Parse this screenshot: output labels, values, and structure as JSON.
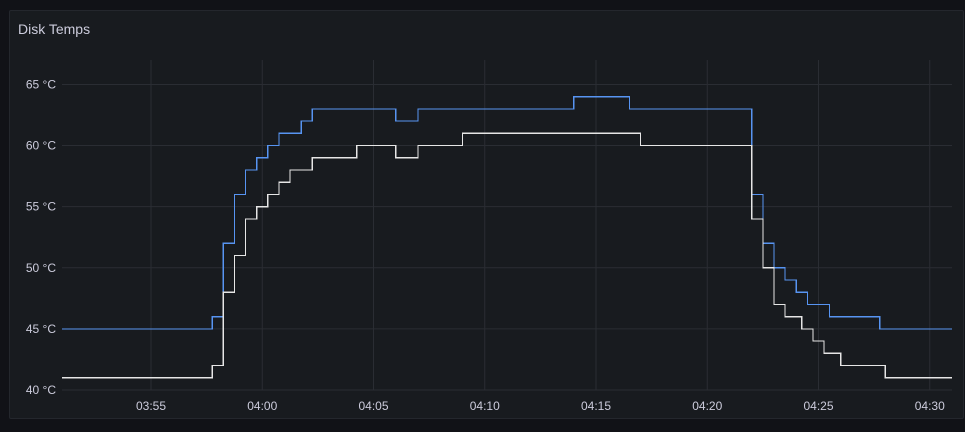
{
  "panel": {
    "title": "Disk Temps"
  },
  "colors": {
    "background": "#111217",
    "panel": "#181b1f",
    "grid": "#2a2d33",
    "text": "#ccccdc",
    "series_blue": "#5794f2",
    "series_white": "#e6e6e6"
  },
  "chart_data": {
    "type": "line",
    "line_style": "step-after",
    "title": "Disk Temps",
    "xlabel": "",
    "ylabel": "",
    "x_unit": "time (HH:MM)",
    "y_unit": "°C",
    "xlim": [
      "03:51:00",
      "04:31:00"
    ],
    "ylim": [
      40,
      67
    ],
    "x_ticks": [
      "03:55",
      "04:00",
      "04:05",
      "04:10",
      "04:15",
      "04:20",
      "04:25",
      "04:30"
    ],
    "y_ticks": [
      "40 °C",
      "45 °C",
      "50 °C",
      "55 °C",
      "60 °C",
      "65 °C"
    ],
    "grid": true,
    "legend": "none",
    "series": [
      {
        "color": "#5794f2",
        "points": [
          [
            "03:51:00",
            45
          ],
          [
            "03:57:45",
            46
          ],
          [
            "03:58:15",
            52
          ],
          [
            "03:58:45",
            56
          ],
          [
            "03:59:15",
            58
          ],
          [
            "03:59:45",
            59
          ],
          [
            "04:00:15",
            60
          ],
          [
            "04:00:45",
            61
          ],
          [
            "04:01:45",
            62
          ],
          [
            "04:02:15",
            63
          ],
          [
            "04:06:00",
            62
          ],
          [
            "04:07:00",
            63
          ],
          [
            "04:14:00",
            64
          ],
          [
            "04:16:30",
            63
          ],
          [
            "04:22:00",
            56
          ],
          [
            "04:22:30",
            52
          ],
          [
            "04:23:00",
            50
          ],
          [
            "04:23:30",
            49
          ],
          [
            "04:24:00",
            48
          ],
          [
            "04:24:30",
            47
          ],
          [
            "04:25:30",
            46
          ],
          [
            "04:27:45",
            45
          ],
          [
            "04:31:00",
            45
          ]
        ]
      },
      {
        "color": "#e6e6e6",
        "points": [
          [
            "03:51:00",
            41
          ],
          [
            "03:57:45",
            42
          ],
          [
            "03:58:15",
            48
          ],
          [
            "03:58:45",
            51
          ],
          [
            "03:59:15",
            54
          ],
          [
            "03:59:45",
            55
          ],
          [
            "04:00:15",
            56
          ],
          [
            "04:00:45",
            57
          ],
          [
            "04:01:15",
            58
          ],
          [
            "04:02:15",
            59
          ],
          [
            "04:04:15",
            60
          ],
          [
            "04:06:00",
            59
          ],
          [
            "04:07:00",
            60
          ],
          [
            "04:09:00",
            61
          ],
          [
            "04:17:00",
            60
          ],
          [
            "04:22:00",
            54
          ],
          [
            "04:22:30",
            50
          ],
          [
            "04:23:00",
            47
          ],
          [
            "04:23:30",
            46
          ],
          [
            "04:24:15",
            45
          ],
          [
            "04:24:45",
            44
          ],
          [
            "04:25:15",
            43
          ],
          [
            "04:26:00",
            42
          ],
          [
            "04:28:00",
            41
          ],
          [
            "04:31:00",
            41
          ]
        ]
      }
    ]
  }
}
